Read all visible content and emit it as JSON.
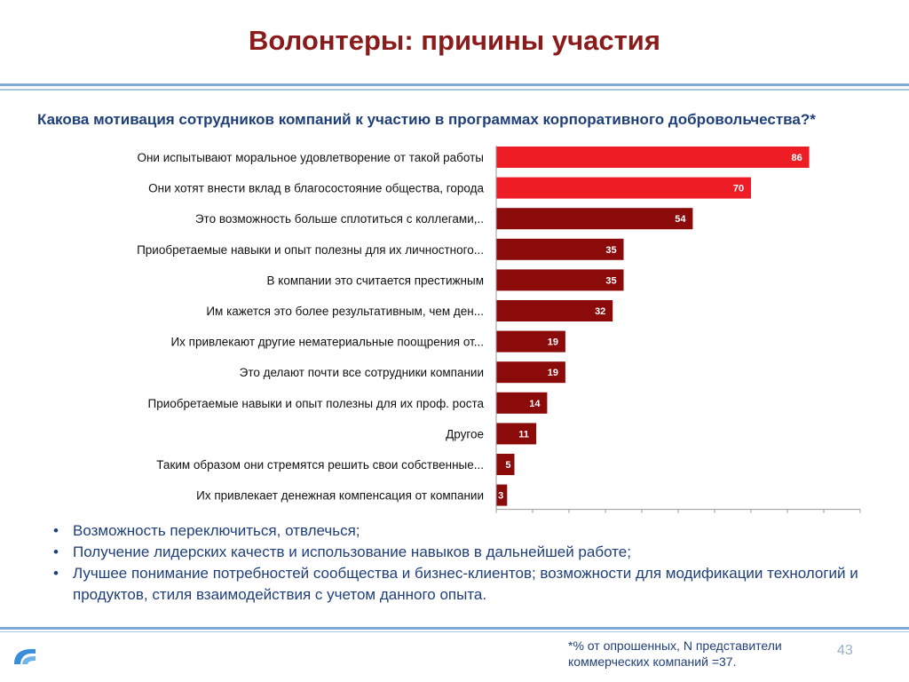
{
  "slide": {
    "title": "Волонтеры: причины участия",
    "question": "Какова мотивация сотрудников компаний к участию в программах корпоративного добровольчества?*",
    "bullets": [
      "Возможность переключиться, отвлечься;",
      "Получение лидерских качеств и использование навыков в дальнейшей работе;",
      "Лучшее понимание потребностей сообщества и бизнес-клиентов; возможности для модификации технологий и продуктов, стиля взаимодействия с учетом данного опыта."
    ],
    "footnote": "*% от опрошенных, N представители коммерческих компаний =37.",
    "page_number": "43",
    "logo_icon": "company-logo-icon"
  },
  "colors": {
    "highlight_bar": "#ee1c25",
    "regular_bar": "#8b0a0a",
    "title": "#8b1a1a",
    "text": "#1f3f7a"
  },
  "chart_data": {
    "type": "bar",
    "orientation": "horizontal",
    "categories": [
      "Они испытывают моральное удовлетворение от такой работы",
      "Они хотят внести вклад в благосостояние общества, города",
      "Это возможность больше сплотиться с коллегами,..",
      "Приобретаемые навыки и опыт полезны для их личностного...",
      "В компании это считается престижным",
      "Им кажется это более результативным, чем ден...",
      "Их привлекают другие нематериальные поощрения от...",
      "Это делают почти все сотрудники компании",
      "Приобретаемые навыки и опыт полезны для их проф. роста",
      "Другое",
      "Таким образом они стремятся решить свои собственные...",
      "Их привлекает денежная компенсация от компании"
    ],
    "values": [
      86,
      70,
      54,
      35,
      35,
      32,
      19,
      19,
      14,
      11,
      5,
      3
    ],
    "value_labels": [
      "86",
      "70",
      "54",
      "35",
      "35",
      "32",
      "19",
      "19",
      "14",
      "11",
      "5",
      "3"
    ],
    "highlighted": [
      true,
      true,
      false,
      false,
      false,
      false,
      false,
      false,
      false,
      false,
      false,
      false
    ],
    "xlim": [
      0,
      100
    ],
    "xticks": [
      "0",
      "10",
      "20",
      "30",
      "40",
      "50",
      "60",
      "70",
      "80",
      "90",
      "100"
    ],
    "grid": false,
    "legend": "none"
  }
}
